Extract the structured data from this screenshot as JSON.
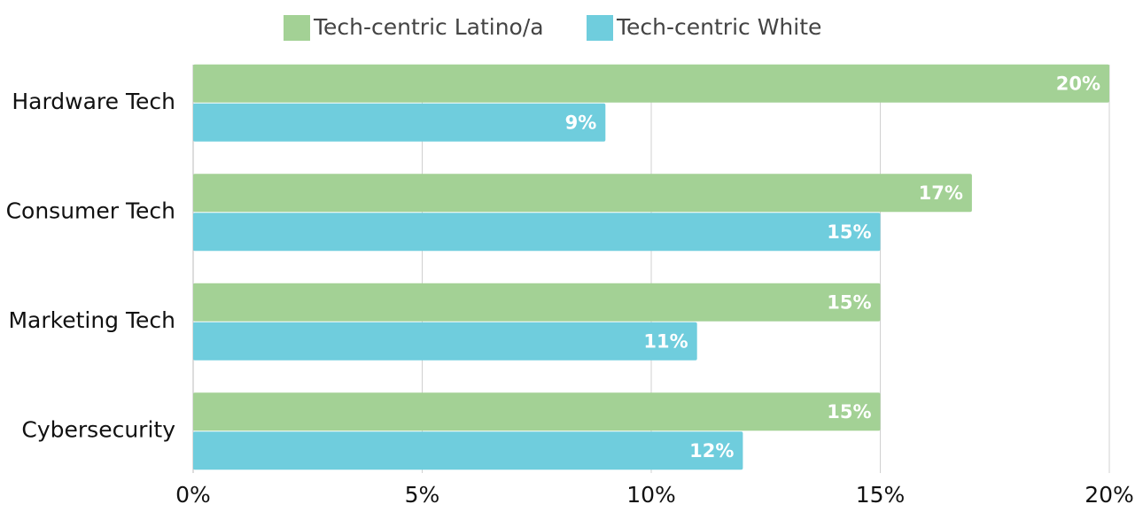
{
  "chart_data": {
    "type": "bar",
    "orientation": "horizontal",
    "categories": [
      "Hardware Tech",
      "Consumer Tech",
      "Marketing Tech",
      "Cybersecurity"
    ],
    "series": [
      {
        "name": "Tech-centric Latino/a",
        "color": "#a3d195",
        "values": [
          20,
          17,
          15,
          15
        ],
        "value_labels": [
          "20%",
          "17%",
          "15%",
          "15%"
        ]
      },
      {
        "name": "Tech-centric White",
        "color": "#6fcddd",
        "values": [
          9,
          15,
          11,
          12
        ],
        "value_labels": [
          "9%",
          "15%",
          "11%",
          "12%"
        ]
      }
    ],
    "xlim": [
      0,
      20
    ],
    "xticks": [
      {
        "value": 0,
        "label": "0%"
      },
      {
        "value": 5,
        "label": "5%"
      },
      {
        "value": 10,
        "label": "10%"
      },
      {
        "value": 15,
        "label": "15%"
      },
      {
        "value": 20,
        "label": "20%"
      }
    ],
    "grid": true,
    "legend": "top"
  }
}
